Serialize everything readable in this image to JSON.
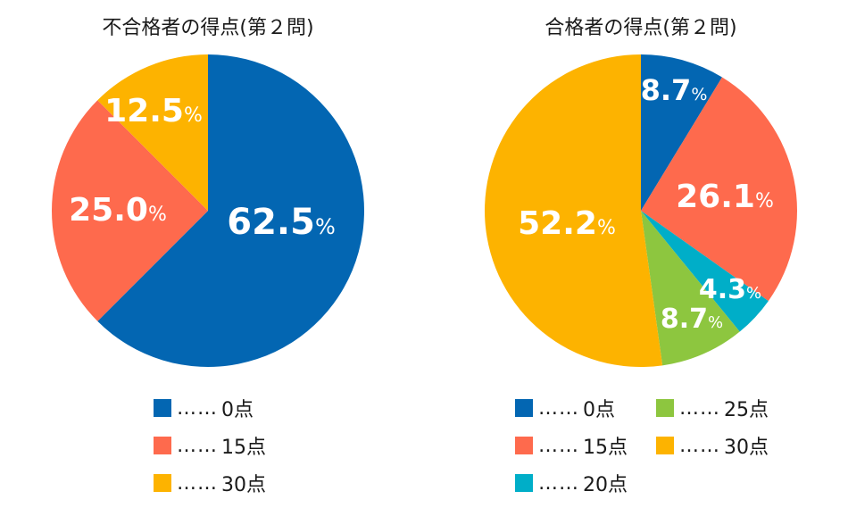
{
  "colors": {
    "score0": "#0366b2",
    "score15": "#fe6a4d",
    "score20": "#00aec8",
    "score25": "#8dc63f",
    "score30": "#fdb300"
  },
  "legend_dots": "……",
  "chart_data": [
    {
      "type": "pie",
      "title": "不合格者の得点(第２問)",
      "slices": [
        {
          "label": "0点",
          "value": 62.5,
          "value_text": "62.5",
          "unit": "%",
          "color": "#0366b2"
        },
        {
          "label": "15点",
          "value": 25.0,
          "value_text": "25.0",
          "unit": "%",
          "color": "#fe6a4d"
        },
        {
          "label": "30点",
          "value": 12.5,
          "value_text": "12.5",
          "unit": "%",
          "color": "#fdb300"
        }
      ]
    },
    {
      "type": "pie",
      "title": "合格者の得点(第２問)",
      "slices": [
        {
          "label": "0点",
          "value": 8.7,
          "value_text": "8.7",
          "unit": "%",
          "color": "#0366b2"
        },
        {
          "label": "15点",
          "value": 26.1,
          "value_text": "26.1",
          "unit": "%",
          "color": "#fe6a4d"
        },
        {
          "label": "20点",
          "value": 4.3,
          "value_text": "4.3",
          "unit": "%",
          "color": "#00aec8"
        },
        {
          "label": "25点",
          "value": 8.7,
          "value_text": "8.7",
          "unit": "%",
          "color": "#8dc63f"
        },
        {
          "label": "30点",
          "value": 52.2,
          "value_text": "52.2",
          "unit": "%",
          "color": "#fdb300"
        }
      ]
    }
  ]
}
